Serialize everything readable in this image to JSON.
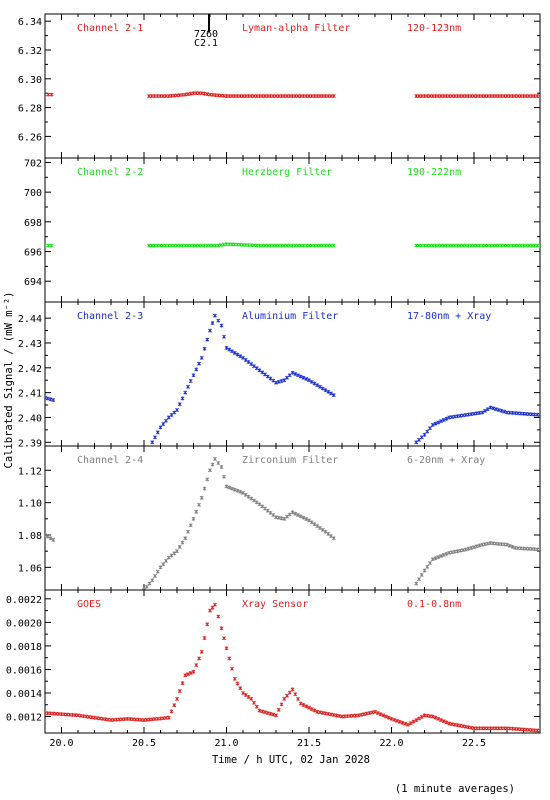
{
  "colors": {
    "red": "#e02020",
    "green": "#20e020",
    "blue": "#1c2fd0",
    "gray": "#808080",
    "axis": "#000000"
  },
  "ylabel": "Calibrated Signal / (mW m⁻²)",
  "xlabel": "Time / h UTC, 02 Jan 2028",
  "footnote": "(1 minute averages)",
  "event_marker": {
    "x": 20.9,
    "label_top": "7Z60",
    "label_bottom": "C2.1"
  },
  "chart_data": [
    {
      "type": "scatter",
      "channel": "Channel 2-1",
      "filter": "Lyman-alpha Filter",
      "band": "120-123nm",
      "color": "red",
      "ylim": [
        6.245,
        6.345
      ],
      "yticks": [
        6.26,
        6.28,
        6.3,
        6.32,
        6.34
      ],
      "ytick_decimals": 2,
      "xlim": [
        19.9,
        22.9
      ],
      "series": [
        {
          "x": [
            19.9,
            19.94
          ],
          "y": [
            6.289,
            6.289
          ]
        },
        {
          "x": [
            20.53,
            20.65,
            20.75,
            20.8,
            20.85,
            20.9,
            21.0,
            21.2,
            21.4,
            21.65
          ],
          "y": [
            6.288,
            6.288,
            6.289,
            6.29,
            6.29,
            6.289,
            6.288,
            6.288,
            6.288,
            6.288
          ]
        },
        {
          "x": [
            22.15,
            22.4,
            22.6,
            22.9
          ],
          "y": [
            6.288,
            6.288,
            6.288,
            6.288
          ]
        }
      ]
    },
    {
      "type": "scatter",
      "channel": "Channel 2-2",
      "filter": "Herzberg Filter",
      "band": "190-222nm",
      "color": "green",
      "ylim": [
        692.6,
        702.3
      ],
      "yticks": [
        694,
        696,
        698,
        700,
        702
      ],
      "ytick_decimals": 0,
      "xlim": [
        19.9,
        22.9
      ],
      "series": [
        {
          "x": [
            19.9,
            19.94
          ],
          "y": [
            696.4,
            696.4
          ]
        },
        {
          "x": [
            20.53,
            20.7,
            20.85,
            20.95,
            21.0,
            21.2,
            21.4,
            21.65
          ],
          "y": [
            696.4,
            696.4,
            696.4,
            696.4,
            696.5,
            696.4,
            696.4,
            696.4
          ]
        },
        {
          "x": [
            22.15,
            22.4,
            22.6,
            22.9
          ],
          "y": [
            696.4,
            696.4,
            696.4,
            696.4
          ]
        }
      ]
    },
    {
      "type": "scatter",
      "channel": "Channel 2-3",
      "filter": "Aluminium Filter",
      "band": "17-80nm + Xray",
      "color": "blue",
      "ylim": [
        2.3885,
        2.4465
      ],
      "yticks": [
        2.39,
        2.4,
        2.41,
        2.42,
        2.43,
        2.44
      ],
      "ytick_decimals": 2,
      "xlim": [
        19.9,
        22.9
      ],
      "series": [
        {
          "x": [
            19.9,
            19.95
          ],
          "y": [
            2.408,
            2.407
          ]
        },
        {
          "x": [
            20.55,
            20.6,
            20.65,
            20.7,
            20.75,
            20.8,
            20.85,
            20.9,
            20.93,
            20.97,
            21.0,
            21.05,
            21.1,
            21.2,
            21.3,
            21.35,
            21.4,
            21.5,
            21.6,
            21.65
          ],
          "y": [
            2.39,
            2.396,
            2.4,
            2.403,
            2.41,
            2.417,
            2.424,
            2.435,
            2.441,
            2.437,
            2.428,
            2.426,
            2.424,
            2.419,
            2.414,
            2.415,
            2.418,
            2.415,
            2.411,
            2.409
          ]
        },
        {
          "x": [
            22.15,
            22.2,
            22.25,
            22.35,
            22.45,
            22.55,
            22.6,
            22.65,
            22.7,
            22.9
          ],
          "y": [
            2.39,
            2.393,
            2.397,
            2.4,
            2.401,
            2.402,
            2.404,
            2.403,
            2.402,
            2.401
          ]
        }
      ]
    },
    {
      "type": "scatter",
      "channel": "Channel 2-4",
      "filter": "Zirconium Filter",
      "band": "6-20nm + Xray",
      "color": "gray",
      "ylim": [
        1.046,
        1.135
      ],
      "yticks": [
        1.06,
        1.08,
        1.1,
        1.12
      ],
      "ytick_decimals": 2,
      "xlim": [
        19.9,
        22.9
      ],
      "series": [
        {
          "x": [
            19.9,
            19.95
          ],
          "y": [
            1.08,
            1.077
          ]
        },
        {
          "x": [
            20.5,
            20.55,
            20.6,
            20.65,
            20.7,
            20.75,
            20.8,
            20.85,
            20.9,
            20.93,
            20.97,
            21.0,
            21.05,
            21.1,
            21.2,
            21.3,
            21.35,
            21.4,
            21.5,
            21.6,
            21.65
          ],
          "y": [
            1.046,
            1.052,
            1.06,
            1.066,
            1.07,
            1.078,
            1.09,
            1.103,
            1.12,
            1.127,
            1.122,
            1.11,
            1.108,
            1.106,
            1.099,
            1.091,
            1.09,
            1.094,
            1.089,
            1.082,
            1.078
          ]
        },
        {
          "x": [
            22.15,
            22.2,
            22.25,
            22.35,
            22.45,
            22.55,
            22.6,
            22.7,
            22.75,
            22.9
          ],
          "y": [
            1.05,
            1.058,
            1.065,
            1.069,
            1.071,
            1.074,
            1.075,
            1.074,
            1.072,
            1.071
          ]
        }
      ]
    },
    {
      "type": "scatter",
      "channel": "GOES",
      "filter": "Xray Sensor",
      "band": "0.1-0.8nm",
      "color": "red",
      "ylim": [
        0.00106,
        0.002275
      ],
      "yticks": [
        0.0012,
        0.0014,
        0.0016,
        0.0018,
        0.002,
        0.0022
      ],
      "ytick_decimals": 4,
      "xlim": [
        19.9,
        22.9
      ],
      "series": [
        {
          "x": [
            19.9,
            20.1,
            20.3,
            20.4,
            20.5,
            20.65,
            20.7,
            20.75,
            20.8,
            20.85,
            20.9,
            20.93,
            20.97,
            21.0,
            21.05,
            21.1,
            21.15,
            21.2,
            21.3,
            21.35,
            21.4,
            21.45,
            21.55,
            21.7,
            21.8,
            21.9,
            22.0,
            22.1,
            22.2,
            22.25,
            22.35,
            22.5,
            22.7,
            22.9
          ],
          "y": [
            0.00123,
            0.00121,
            0.00117,
            0.00118,
            0.00117,
            0.00119,
            0.00135,
            0.00155,
            0.00158,
            0.00175,
            0.0021,
            0.00215,
            0.00195,
            0.00178,
            0.00152,
            0.0014,
            0.00135,
            0.00125,
            0.00121,
            0.00135,
            0.00143,
            0.00131,
            0.00124,
            0.0012,
            0.00121,
            0.00124,
            0.00118,
            0.00113,
            0.00121,
            0.0012,
            0.00114,
            0.0011,
            0.0011,
            0.00108
          ]
        }
      ]
    }
  ],
  "xticks": [
    20.0,
    20.5,
    21.0,
    21.5,
    22.0,
    22.5
  ]
}
